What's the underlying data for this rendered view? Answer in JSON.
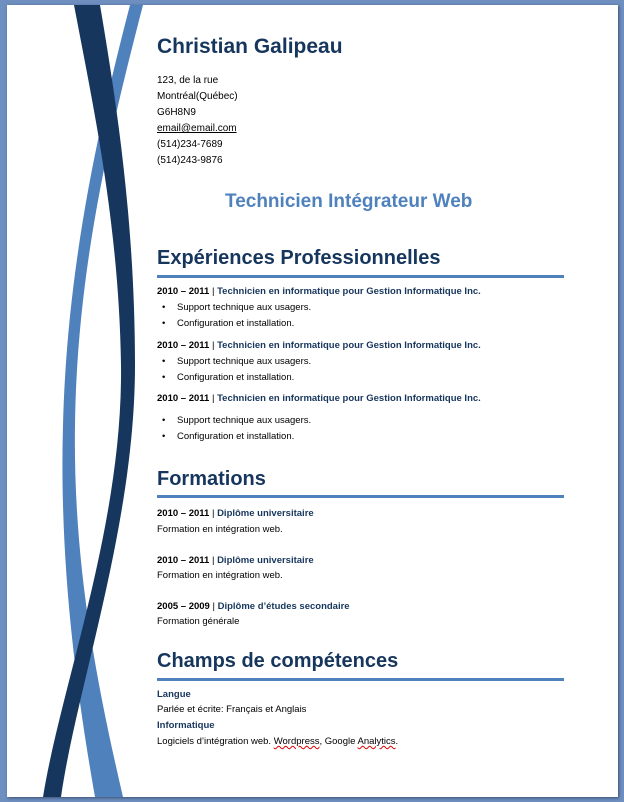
{
  "name": "Christian Galipeau",
  "address": [
    "123, de la rue",
    "Montréal(Québec)",
    "G6H8N9"
  ],
  "email": "email@email.com",
  "phones": [
    "(514)234-7689",
    "(514)243-9876"
  ],
  "job_title": "Technicien Intégrateur Web",
  "colors": {
    "heading": "#17365d",
    "accent": "#4f81bd",
    "background": "#6f8fc0"
  },
  "experience": {
    "heading": "Expériences Professionnelles",
    "items": [
      {
        "years": "2010 – 2011",
        "sep": " | ",
        "title": "Technicien en informatique pour Gestion Informatique Inc.",
        "bullets": [
          "Support technique aux usagers.",
          "Configuration et installation."
        ]
      },
      {
        "years": "2010 – 2011",
        "sep": " | ",
        "title": "Technicien en informatique pour Gestion Informatique Inc.",
        "bullets": [
          "Support technique aux usagers.",
          "Configuration et installation."
        ]
      },
      {
        "years": "2010 – 2011",
        "sep": " | ",
        "title": "Technicien en informatique pour Gestion Informatique Inc.",
        "bullets": [
          "Support technique aux usagers.",
          "Configuration et installation."
        ]
      }
    ]
  },
  "education": {
    "heading": "Formations",
    "items": [
      {
        "years": "2010 – 2011",
        "sep": " | ",
        "title": "Diplôme universitaire",
        "desc": "Formation en intégration web."
      },
      {
        "years": "2010 – 2011",
        "sep": " | ",
        "title": "Diplôme universitaire",
        "desc": "Formation en intégration web."
      },
      {
        "years": "2005 – 2009",
        "sep": " | ",
        "title": "Diplôme d’études secondaire",
        "desc": "Formation générale"
      }
    ]
  },
  "skills": {
    "heading": "Champs de compétences",
    "language_label": "Langue",
    "language_text": "Parlée et écrite: Français et Anglais",
    "it_label": "Informatique",
    "it_text_a": "Logiciels d’intégration web. ",
    "it_text_b": "Wordpress",
    "it_text_c": ", Google ",
    "it_text_d": "Analytics",
    "it_text_e": "."
  }
}
